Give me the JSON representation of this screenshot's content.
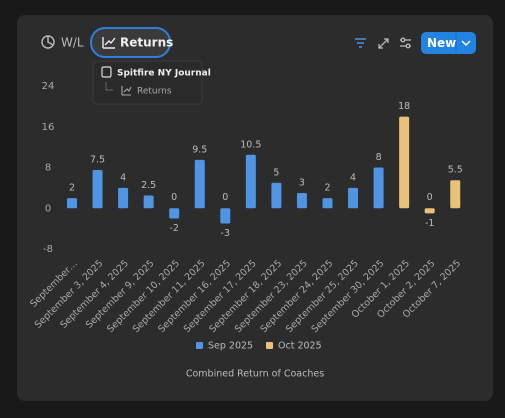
{
  "toolbar": {
    "tabs": [
      "W/L",
      "Returns"
    ],
    "new_button": "New"
  },
  "popup": {
    "source": "Spitfire NY Journal",
    "view": "Returns"
  },
  "chart_data": {
    "type": "bar",
    "caption": "Combined Return of Coaches",
    "categories": [
      "September…",
      "September 3, 2025",
      "September 4, 2025",
      "September 9, 2025",
      "September 10, 2025",
      "September 11, 2025",
      "September 16, 2025",
      "September 17, 2025",
      "September 18, 2025",
      "September 23, 2025",
      "September 24, 2025",
      "September 25, 2025",
      "September 30, 2025",
      "October 1, 2025",
      "October 2, 2025",
      "October 7, 2025"
    ],
    "series": [
      {
        "name": "Sep 2025",
        "color": "#5094e4",
        "values": [
          2,
          7.5,
          4,
          2.5,
          -2,
          9.5,
          -3,
          10.5,
          5,
          3,
          2,
          4,
          8,
          null,
          null,
          null
        ],
        "positive_totals": [
          null,
          null,
          null,
          null,
          0,
          null,
          0,
          null,
          null,
          null,
          null,
          null,
          null,
          null,
          null,
          null
        ]
      },
      {
        "name": "Oct 2025",
        "color": "#e8c278",
        "values": [
          null,
          null,
          null,
          null,
          null,
          null,
          null,
          null,
          null,
          null,
          null,
          null,
          null,
          18,
          -1,
          5.5
        ],
        "positive_totals": [
          null,
          null,
          null,
          null,
          null,
          null,
          null,
          null,
          null,
          null,
          null,
          null,
          null,
          null,
          0,
          null
        ]
      }
    ],
    "ylim": [
      -8,
      24
    ],
    "yticks": [
      -8,
      0,
      8,
      16,
      24
    ],
    "grid": false
  }
}
